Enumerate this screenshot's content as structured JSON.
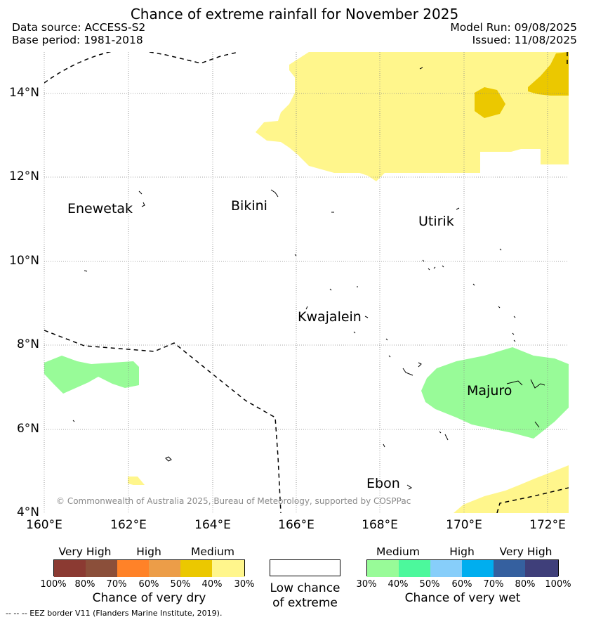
{
  "title": "Chance of extreme rainfall for November 2025",
  "header": {
    "data_source": "Data source: ACCESS-S2",
    "base_period": "Base period: 1981-2018",
    "model_run": "Model Run: 09/08/2025",
    "issued": "Issued: 11/08/2025"
  },
  "axes": {
    "lat_labels": [
      "14°N",
      "12°N",
      "10°N",
      "8°N",
      "6°N",
      "4°N"
    ],
    "lon_labels": [
      "160°E",
      "162°E",
      "164°E",
      "166°E",
      "168°E",
      "170°E",
      "172°E"
    ]
  },
  "places": {
    "enewetak": "Enewetak",
    "bikini": "Bikini",
    "utirik": "Utirik",
    "kwajalein": "Kwajalein",
    "majuro": "Majuro",
    "ebon": "Ebon"
  },
  "copyright": "© Commonwealth of Australia 2025, Bureau of Meteorology, supported by COSPPac",
  "legend_dry": {
    "categories": [
      "Very High",
      "High",
      "Medium"
    ],
    "ticks": [
      "100%",
      "80%",
      "70%",
      "60%",
      "50%",
      "40%",
      "30%"
    ],
    "title": "Chance of very dry",
    "colors": [
      "#8b3a32",
      "#8b4f3a",
      "#ff8228",
      "#ec9d48",
      "#ebc800",
      "#fff68c"
    ]
  },
  "legend_low": {
    "line1": "Low chance",
    "line2": "of extreme",
    "color": "#ffffff"
  },
  "legend_wet": {
    "categories": [
      "Medium",
      "High",
      "Very High"
    ],
    "ticks": [
      "30%",
      "40%",
      "50%",
      "60%",
      "70%",
      "80%",
      "100%"
    ],
    "title": "Chance of very wet",
    "colors": [
      "#98fb98",
      "#4cf89c",
      "#87cefa",
      "#00aeef",
      "#35609f",
      "#3f3f7a"
    ]
  },
  "footer": "--  --  -- EEZ border V11 (Flanders Marine Institute, 2019)."
}
